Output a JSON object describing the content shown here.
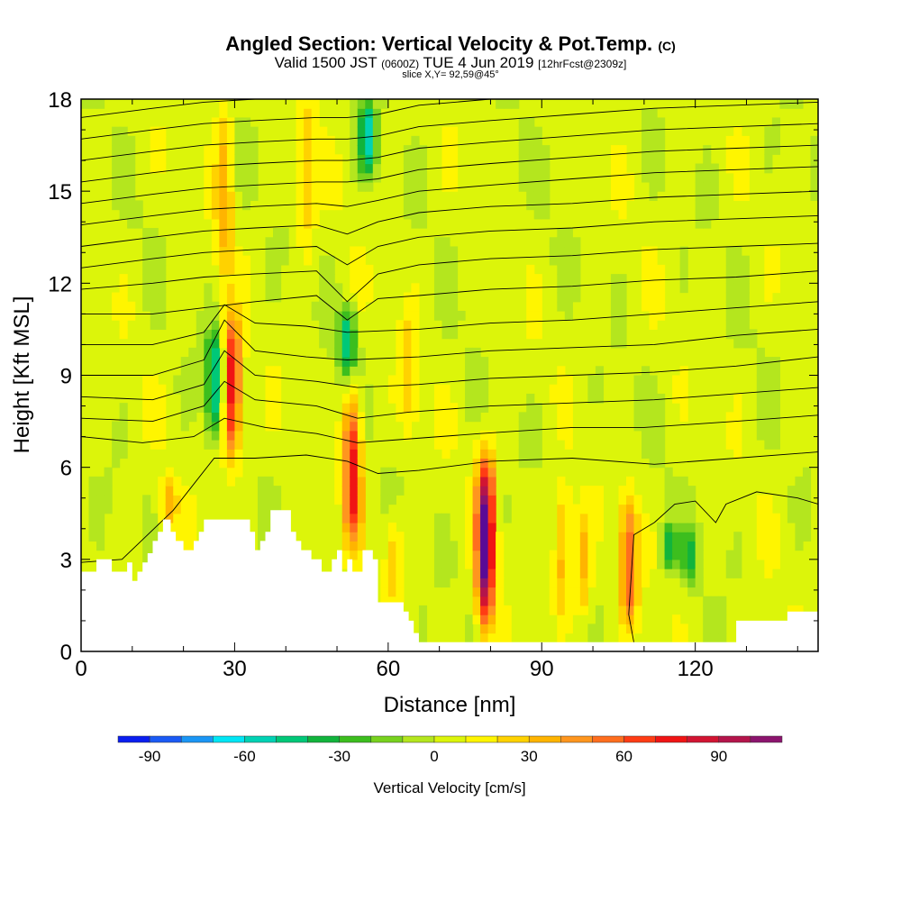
{
  "header": {
    "title": "Angled Section: Vertical Velocity & Pot.Temp.",
    "title_unit": "(C)",
    "valid_pre": "Valid 1500 JST",
    "valid_z": "(0600Z)",
    "valid_post": "TUE 4 Jun 2019",
    "forecast": "[12hrFcst@2309z]",
    "slice": "slice X,Y= 92,59@45°"
  },
  "chart_data": {
    "type": "heatmap",
    "xlabel": "Distance [nm]",
    "ylabel": "Height [Kft MSL]",
    "xlim": [
      0,
      144
    ],
    "ylim": [
      0,
      18
    ],
    "x_ticks": [
      "0",
      "30",
      "60",
      "90",
      "120"
    ],
    "y_ticks": [
      "0",
      "3",
      "6",
      "9",
      "12",
      "15",
      "18"
    ],
    "colorbar": {
      "label": "Vertical Velocity [cm/s]",
      "ticks": [
        "-90",
        "-60",
        "-30",
        "0",
        "30",
        "60",
        "90"
      ],
      "bins": [
        -100,
        -90,
        -80,
        -70,
        -60,
        -50,
        -40,
        -30,
        -20,
        -10,
        0,
        10,
        20,
        30,
        40,
        50,
        60,
        70,
        80,
        90,
        100,
        110
      ],
      "colors": [
        "#0a1ef0",
        "#1a5af5",
        "#1a96f5",
        "#00e6f5",
        "#00d2b4",
        "#00c878",
        "#11b43c",
        "#3cbe1e",
        "#78d21e",
        "#b4e61e",
        "#dcf50a",
        "#fff500",
        "#ffd200",
        "#ffb400",
        "#ff961e",
        "#ff6e1e",
        "#ff3c14",
        "#f01414",
        "#d21432",
        "#b4144b",
        "#8c146e",
        "#5a0a96"
      ]
    },
    "updrafts": [
      {
        "x": 29.5,
        "bottom": 6.2,
        "top": 10.9,
        "peak": 75
      },
      {
        "x": 53,
        "bottom": 3.6,
        "top": 8.4,
        "peak": 75
      },
      {
        "x": 79,
        "bottom": 0.8,
        "top": 6.4,
        "peak": 110
      },
      {
        "x": 17,
        "bottom": 4.0,
        "top": 5.6,
        "peak": 30
      },
      {
        "x": 61,
        "bottom": 1.6,
        "top": 4.5,
        "peak": 25
      },
      {
        "x": 94,
        "bottom": 1.2,
        "top": 5.4,
        "peak": 35
      },
      {
        "x": 98,
        "bottom": 1.0,
        "top": 4.6,
        "peak": 30
      },
      {
        "x": 107,
        "bottom": 0.8,
        "top": 5.0,
        "peak": 55
      },
      {
        "x": 28,
        "bottom": 12.0,
        "top": 18.0,
        "peak": 30
      },
      {
        "x": 44,
        "bottom": 13.0,
        "top": 18.0,
        "peak": 25
      },
      {
        "x": 64,
        "bottom": 7.0,
        "top": 11.0,
        "peak": 22
      }
    ],
    "downdrafts": [
      {
        "x": 26,
        "bottom": 7.0,
        "top": 10.5,
        "peak": -55
      },
      {
        "x": 52,
        "bottom": 9.0,
        "top": 11.2,
        "peak": -50
      },
      {
        "x": 56,
        "bottom": 15.5,
        "top": 18.0,
        "peak": -55
      },
      {
        "x": 115,
        "bottom": 2.6,
        "top": 4.2,
        "peak": -40
      },
      {
        "x": 119,
        "bottom": 2.2,
        "top": 4.0,
        "peak": -35
      }
    ],
    "terrain": [
      [
        0,
        2.6
      ],
      [
        3,
        2.6
      ],
      [
        3,
        3.0
      ],
      [
        6,
        3.0
      ],
      [
        6,
        2.6
      ],
      [
        9,
        2.6
      ],
      [
        9,
        2.9
      ],
      [
        10,
        2.9
      ],
      [
        10,
        2.3
      ],
      [
        11,
        2.3
      ],
      [
        11,
        2.6
      ],
      [
        12,
        2.6
      ],
      [
        12,
        2.9
      ],
      [
        13,
        2.9
      ],
      [
        13,
        3.2
      ],
      [
        14,
        3.2
      ],
      [
        14,
        3.6
      ],
      [
        15,
        3.6
      ],
      [
        15,
        3.9
      ],
      [
        16,
        3.9
      ],
      [
        16,
        4.3
      ],
      [
        17.5,
        4.3
      ],
      [
        17.5,
        3.9
      ],
      [
        18.5,
        3.9
      ],
      [
        18.5,
        3.6
      ],
      [
        20,
        3.6
      ],
      [
        20,
        3.3
      ],
      [
        22,
        3.3
      ],
      [
        22,
        3.6
      ],
      [
        23,
        3.6
      ],
      [
        23,
        3.9
      ],
      [
        24,
        3.9
      ],
      [
        24,
        4.3
      ],
      [
        33,
        4.3
      ],
      [
        33,
        3.9
      ],
      [
        34,
        3.9
      ],
      [
        34,
        3.3
      ],
      [
        35,
        3.3
      ],
      [
        35,
        3.6
      ],
      [
        36,
        3.6
      ],
      [
        36,
        3.9
      ],
      [
        37,
        3.9
      ],
      [
        37,
        4.6
      ],
      [
        41,
        4.6
      ],
      [
        41,
        3.9
      ],
      [
        42,
        3.9
      ],
      [
        42,
        3.6
      ],
      [
        43,
        3.6
      ],
      [
        43,
        3.3
      ],
      [
        45,
        3.3
      ],
      [
        45,
        3.0
      ],
      [
        47,
        3.0
      ],
      [
        47,
        2.6
      ],
      [
        49,
        2.6
      ],
      [
        49,
        3.0
      ],
      [
        50,
        3.0
      ],
      [
        50,
        3.3
      ],
      [
        51,
        3.3
      ],
      [
        51,
        2.6
      ],
      [
        52,
        2.6
      ],
      [
        52,
        3.0
      ],
      [
        53,
        3.0
      ],
      [
        53,
        2.6
      ],
      [
        55,
        2.6
      ],
      [
        55,
        3.3
      ],
      [
        57,
        3.3
      ],
      [
        57,
        3.0
      ],
      [
        58,
        3.0
      ],
      [
        58,
        1.6
      ],
      [
        63,
        1.6
      ],
      [
        63,
        1.3
      ],
      [
        64,
        1.3
      ],
      [
        64,
        1.0
      ],
      [
        65,
        1.0
      ],
      [
        65,
        0.6
      ],
      [
        66,
        0.6
      ],
      [
        66,
        0.3
      ],
      [
        128,
        0.3
      ],
      [
        128,
        1.0
      ],
      [
        138,
        1.0
      ],
      [
        138,
        1.3
      ],
      [
        144,
        1.3
      ]
    ],
    "isentropes": [
      [
        [
          0,
          2.9
        ],
        [
          8,
          3.0
        ],
        [
          18,
          4.6
        ],
        [
          26,
          6.3
        ],
        [
          34,
          6.3
        ],
        [
          44,
          6.4
        ],
        [
          52,
          6.2
        ],
        [
          58,
          5.8
        ],
        [
          66,
          5.9
        ],
        [
          80,
          6.2
        ],
        [
          96,
          6.3
        ],
        [
          112,
          6.1
        ],
        [
          128,
          6.3
        ],
        [
          144,
          6.5
        ]
      ],
      [
        [
          0,
          7.0
        ],
        [
          12,
          6.8
        ],
        [
          22,
          7.0
        ],
        [
          28,
          7.6
        ],
        [
          36,
          7.3
        ],
        [
          46,
          7.1
        ],
        [
          54,
          6.8
        ],
        [
          62,
          6.9
        ],
        [
          78,
          7.1
        ],
        [
          96,
          7.3
        ],
        [
          110,
          7.3
        ],
        [
          128,
          7.5
        ],
        [
          144,
          7.7
        ]
      ],
      [
        [
          0,
          7.6
        ],
        [
          14,
          7.5
        ],
        [
          24,
          8.0
        ],
        [
          28,
          8.8
        ],
        [
          34,
          8.2
        ],
        [
          46,
          8.0
        ],
        [
          54,
          7.6
        ],
        [
          64,
          7.8
        ],
        [
          80,
          8.0
        ],
        [
          96,
          8.1
        ],
        [
          112,
          8.2
        ],
        [
          128,
          8.4
        ],
        [
          144,
          8.6
        ]
      ],
      [
        [
          0,
          8.3
        ],
        [
          14,
          8.2
        ],
        [
          24,
          8.7
        ],
        [
          28,
          9.8
        ],
        [
          34,
          9.0
        ],
        [
          46,
          8.8
        ],
        [
          54,
          8.6
        ],
        [
          66,
          8.7
        ],
        [
          80,
          8.9
        ],
        [
          96,
          9.0
        ],
        [
          112,
          9.1
        ],
        [
          128,
          9.3
        ],
        [
          144,
          9.6
        ]
      ],
      [
        [
          0,
          9.0
        ],
        [
          14,
          9.0
        ],
        [
          24,
          9.5
        ],
        [
          28,
          10.8
        ],
        [
          34,
          9.8
        ],
        [
          44,
          9.6
        ],
        [
          52,
          9.5
        ],
        [
          66,
          9.6
        ],
        [
          80,
          9.8
        ],
        [
          96,
          9.9
        ],
        [
          112,
          10.0
        ],
        [
          128,
          10.3
        ],
        [
          144,
          10.5
        ]
      ],
      [
        [
          0,
          10.0
        ],
        [
          14,
          10.0
        ],
        [
          24,
          10.4
        ],
        [
          28,
          11.3
        ],
        [
          34,
          10.7
        ],
        [
          44,
          10.6
        ],
        [
          52,
          10.4
        ],
        [
          66,
          10.5
        ],
        [
          80,
          10.7
        ],
        [
          96,
          10.8
        ],
        [
          112,
          11.0
        ],
        [
          128,
          11.2
        ],
        [
          144,
          11.4
        ]
      ],
      [
        [
          0,
          11.0
        ],
        [
          14,
          11.0
        ],
        [
          24,
          11.2
        ],
        [
          34,
          11.4
        ],
        [
          46,
          11.6
        ],
        [
          52,
          10.8
        ],
        [
          58,
          11.5
        ],
        [
          66,
          11.6
        ],
        [
          80,
          11.8
        ],
        [
          96,
          11.9
        ],
        [
          112,
          12.1
        ],
        [
          128,
          12.2
        ],
        [
          144,
          12.4
        ]
      ],
      [
        [
          0,
          11.8
        ],
        [
          14,
          12.0
        ],
        [
          24,
          12.2
        ],
        [
          34,
          12.3
        ],
        [
          46,
          12.4
        ],
        [
          52,
          11.4
        ],
        [
          58,
          12.3
        ],
        [
          66,
          12.6
        ],
        [
          80,
          12.8
        ],
        [
          96,
          12.9
        ],
        [
          112,
          13.1
        ],
        [
          128,
          13.2
        ],
        [
          144,
          13.3
        ]
      ],
      [
        [
          0,
          12.5
        ],
        [
          14,
          12.8
        ],
        [
          24,
          13.0
        ],
        [
          34,
          13.1
        ],
        [
          46,
          13.2
        ],
        [
          52,
          12.6
        ],
        [
          58,
          13.2
        ],
        [
          66,
          13.5
        ],
        [
          80,
          13.7
        ],
        [
          96,
          13.8
        ],
        [
          112,
          14.0
        ],
        [
          128,
          14.1
        ],
        [
          144,
          14.2
        ]
      ],
      [
        [
          0,
          13.2
        ],
        [
          14,
          13.5
        ],
        [
          24,
          13.7
        ],
        [
          34,
          13.8
        ],
        [
          46,
          13.9
        ],
        [
          52,
          13.6
        ],
        [
          58,
          14.0
        ],
        [
          66,
          14.3
        ],
        [
          80,
          14.5
        ],
        [
          96,
          14.6
        ],
        [
          112,
          14.8
        ],
        [
          128,
          14.9
        ],
        [
          144,
          15.0
        ]
      ],
      [
        [
          0,
          13.9
        ],
        [
          14,
          14.2
        ],
        [
          24,
          14.4
        ],
        [
          34,
          14.5
        ],
        [
          46,
          14.6
        ],
        [
          52,
          14.5
        ],
        [
          58,
          14.7
        ],
        [
          66,
          15.0
        ],
        [
          80,
          15.2
        ],
        [
          96,
          15.4
        ],
        [
          112,
          15.6
        ],
        [
          128,
          15.7
        ],
        [
          144,
          15.8
        ]
      ],
      [
        [
          0,
          14.6
        ],
        [
          14,
          14.9
        ],
        [
          24,
          15.1
        ],
        [
          34,
          15.2
        ],
        [
          46,
          15.3
        ],
        [
          52,
          15.3
        ],
        [
          58,
          15.4
        ],
        [
          66,
          15.7
        ],
        [
          80,
          15.9
        ],
        [
          96,
          16.1
        ],
        [
          112,
          16.3
        ],
        [
          128,
          16.4
        ],
        [
          144,
          16.5
        ]
      ],
      [
        [
          0,
          15.3
        ],
        [
          14,
          15.6
        ],
        [
          24,
          15.8
        ],
        [
          34,
          15.9
        ],
        [
          46,
          16.0
        ],
        [
          52,
          16.0
        ],
        [
          58,
          16.1
        ],
        [
          66,
          16.4
        ],
        [
          80,
          16.6
        ],
        [
          96,
          16.8
        ],
        [
          112,
          17.0
        ],
        [
          128,
          17.1
        ],
        [
          144,
          17.2
        ]
      ],
      [
        [
          0,
          16.0
        ],
        [
          14,
          16.3
        ],
        [
          24,
          16.5
        ],
        [
          34,
          16.6
        ],
        [
          46,
          16.7
        ],
        [
          52,
          16.7
        ],
        [
          58,
          16.8
        ],
        [
          66,
          17.1
        ],
        [
          80,
          17.3
        ],
        [
          96,
          17.5
        ],
        [
          112,
          17.7
        ],
        [
          128,
          17.8
        ],
        [
          144,
          17.9
        ]
      ],
      [
        [
          0,
          16.7
        ],
        [
          14,
          17.0
        ],
        [
          24,
          17.2
        ],
        [
          34,
          17.3
        ],
        [
          46,
          17.4
        ],
        [
          52,
          17.4
        ],
        [
          58,
          17.5
        ],
        [
          66,
          17.8
        ],
        [
          80,
          18.0
        ]
      ],
      [
        [
          0,
          17.4
        ],
        [
          14,
          17.7
        ],
        [
          24,
          17.9
        ],
        [
          34,
          18.0
        ]
      ],
      [
        [
          112,
          4.2
        ],
        [
          116,
          4.8
        ],
        [
          120,
          4.9
        ],
        [
          124,
          4.2
        ],
        [
          126,
          4.8
        ],
        [
          132,
          5.2
        ],
        [
          140,
          5.0
        ],
        [
          144,
          4.8
        ]
      ],
      [
        [
          112,
          4.2
        ],
        [
          108,
          3.8
        ],
        [
          107,
          1.2
        ],
        [
          108,
          0.3
        ]
      ]
    ]
  }
}
